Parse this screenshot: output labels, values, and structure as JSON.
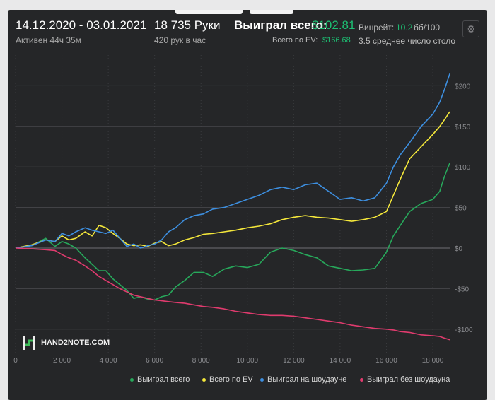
{
  "header": {
    "date_range": "14.12.2020 - 03.01.2021",
    "active_time": "Активен 44ч 35м",
    "hands": "18 735 Руки",
    "hands_per_hour": "420 рук в час",
    "won_total_label": "Выиграл всего:",
    "won_total_value": "$102.81",
    "ev_label": "Всего по EV:",
    "ev_value": "$166.68",
    "winrate_label": "Винрейт:",
    "winrate_value": "10.2",
    "winrate_unit": "бб/100",
    "avg_tables": "3.5 среднее число столо"
  },
  "logo_text": "HAND2NOTE.COM",
  "icons": {
    "settings": "gear-icon"
  },
  "colors": {
    "background": "#252628",
    "won_total": "#27a85b",
    "ev": "#f5e83b",
    "showdown": "#3d8fe0",
    "non_showdown": "#e03b6e",
    "accent_green": "#1dbf73"
  },
  "chart_data": {
    "type": "line",
    "x_tick_labels": [
      "0",
      "2 000",
      "4 000",
      "6 000",
      "8 000",
      "10 000",
      "12 000",
      "14 000",
      "16 000",
      "18 000"
    ],
    "y_tick_labels": [
      "$200",
      "$150",
      "$100",
      "$50",
      "$0",
      "-$50",
      "-$100"
    ],
    "x_ticks": [
      0,
      2000,
      4000,
      6000,
      8000,
      10000,
      12000,
      14000,
      16000,
      18000
    ],
    "y_ticks": [
      200,
      150,
      100,
      50,
      0,
      -50,
      -100
    ],
    "xlim": [
      0,
      18735
    ],
    "ylim": [
      -115,
      225
    ],
    "grid": true,
    "legend_position": "bottom",
    "series": [
      {
        "name": "Выиграл всего",
        "color": "#27a85b",
        "x": [
          0,
          700,
          1300,
          1700,
          2000,
          2300,
          2600,
          3000,
          3300,
          3600,
          3900,
          4200,
          4500,
          4800,
          5100,
          5400,
          5700,
          6000,
          6300,
          6600,
          6900,
          7300,
          7700,
          8100,
          8500,
          9000,
          9500,
          10000,
          10500,
          11000,
          11500,
          12000,
          12500,
          13000,
          13500,
          14000,
          14500,
          15000,
          15500,
          16000,
          16300,
          16600,
          17000,
          17500,
          18000,
          18300,
          18500,
          18735
        ],
        "y": [
          0,
          3,
          12,
          2,
          8,
          5,
          0,
          -12,
          -20,
          -28,
          -28,
          -38,
          -45,
          -52,
          -62,
          -60,
          -63,
          -64,
          -60,
          -58,
          -48,
          -40,
          -30,
          -30,
          -35,
          -26,
          -22,
          -24,
          -20,
          -5,
          0,
          -3,
          -8,
          -12,
          -22,
          -25,
          -28,
          -27,
          -25,
          -5,
          15,
          28,
          45,
          55,
          60,
          70,
          88,
          105
        ]
      },
      {
        "name": "Всего по EV",
        "color": "#f5e83b",
        "x": [
          0,
          700,
          1300,
          1700,
          2000,
          2300,
          2600,
          3000,
          3300,
          3600,
          3900,
          4200,
          4500,
          4800,
          5100,
          5400,
          5700,
          6000,
          6300,
          6600,
          6900,
          7300,
          7700,
          8100,
          8500,
          9000,
          9500,
          10000,
          10500,
          11000,
          11500,
          12000,
          12500,
          13000,
          13500,
          14000,
          14500,
          15000,
          15500,
          16000,
          16300,
          16600,
          17000,
          17500,
          18000,
          18300,
          18500,
          18735
        ],
        "y": [
          0,
          4,
          10,
          8,
          15,
          10,
          12,
          20,
          15,
          28,
          25,
          18,
          12,
          5,
          3,
          4,
          2,
          6,
          8,
          3,
          5,
          10,
          13,
          17,
          18,
          20,
          22,
          25,
          27,
          30,
          35,
          38,
          40,
          38,
          37,
          35,
          33,
          35,
          38,
          45,
          65,
          85,
          110,
          125,
          140,
          150,
          158,
          168
        ]
      },
      {
        "name": "Выиграл на шоудауне",
        "color": "#3d8fe0",
        "x": [
          0,
          700,
          1300,
          1700,
          2000,
          2300,
          2600,
          3000,
          3300,
          3600,
          3900,
          4200,
          4500,
          4800,
          5100,
          5400,
          5700,
          6000,
          6300,
          6600,
          6900,
          7300,
          7700,
          8100,
          8500,
          9000,
          9500,
          10000,
          10500,
          11000,
          11500,
          12000,
          12500,
          13000,
          13500,
          14000,
          14500,
          15000,
          15500,
          16000,
          16300,
          16600,
          17000,
          17500,
          18000,
          18300,
          18500,
          18735
        ],
        "y": [
          0,
          3,
          10,
          8,
          18,
          15,
          20,
          25,
          22,
          20,
          18,
          22,
          12,
          2,
          5,
          0,
          3,
          5,
          10,
          20,
          25,
          35,
          40,
          42,
          48,
          50,
          55,
          60,
          65,
          72,
          75,
          72,
          78,
          80,
          70,
          60,
          62,
          58,
          62,
          80,
          100,
          115,
          130,
          150,
          165,
          180,
          195,
          215
        ]
      },
      {
        "name": "Выиграл без шоудауна",
        "color": "#e03b6e",
        "x": [
          0,
          700,
          1300,
          1700,
          2000,
          2300,
          2600,
          3000,
          3300,
          3600,
          3900,
          4200,
          4500,
          4800,
          5100,
          5400,
          5700,
          6000,
          6300,
          6600,
          6900,
          7300,
          7700,
          8100,
          8500,
          9000,
          9500,
          10000,
          10500,
          11000,
          11500,
          12000,
          12500,
          13000,
          13500,
          14000,
          14500,
          15000,
          15500,
          16000,
          16300,
          16600,
          17000,
          17500,
          18000,
          18300,
          18500,
          18735
        ],
        "y": [
          0,
          -1,
          -2,
          -3,
          -8,
          -12,
          -15,
          -22,
          -28,
          -35,
          -40,
          -45,
          -50,
          -54,
          -58,
          -60,
          -62,
          -64,
          -65,
          -66,
          -67,
          -68,
          -70,
          -72,
          -73,
          -75,
          -78,
          -80,
          -82,
          -83,
          -83,
          -84,
          -86,
          -88,
          -90,
          -92,
          -95,
          -97,
          -99,
          -100,
          -101,
          -103,
          -104,
          -107,
          -108,
          -109,
          -111,
          -113
        ]
      }
    ]
  }
}
